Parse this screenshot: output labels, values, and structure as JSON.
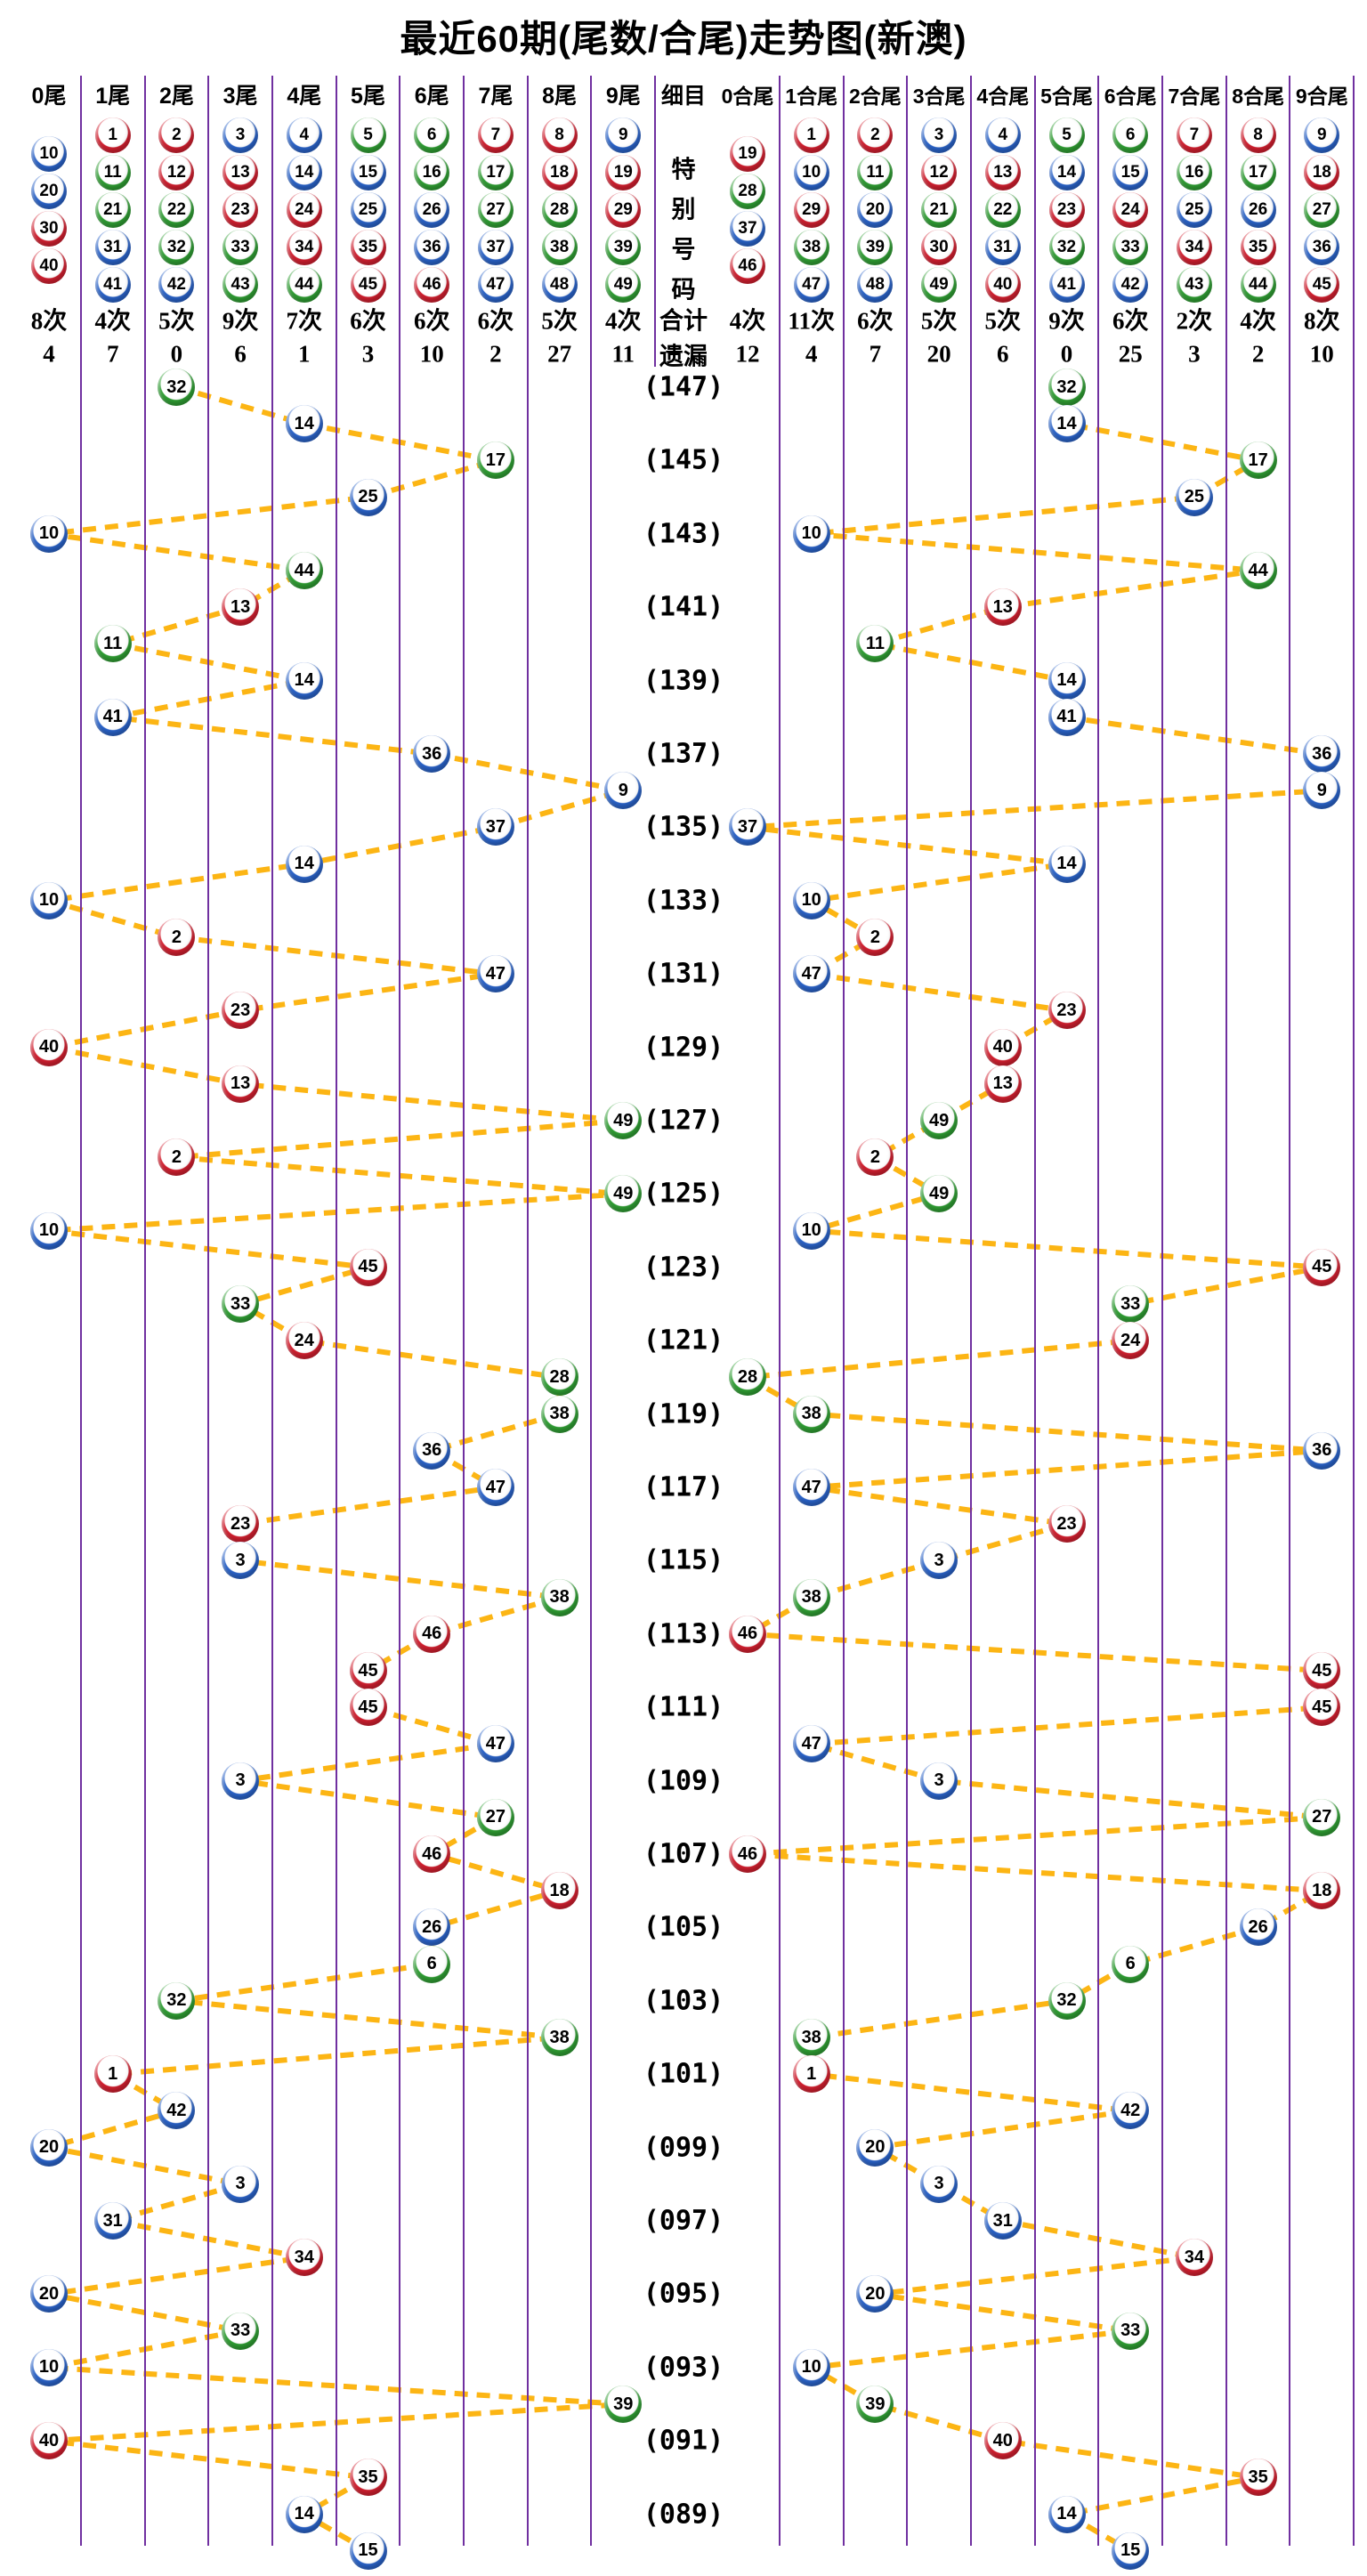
{
  "title": "最近60期(尾数/合尾)走势图(新澳)",
  "columns": {
    "left_headers": [
      "0尾",
      "1尾",
      "2尾",
      "3尾",
      "4尾",
      "5尾",
      "6尾",
      "7尾",
      "8尾",
      "9尾"
    ],
    "middle_header": "细目",
    "right_headers": [
      "0合尾",
      "1合尾",
      "2合尾",
      "3合尾",
      "4合尾",
      "5合尾",
      "6合尾",
      "7合尾",
      "8合尾",
      "9合尾"
    ]
  },
  "legend": {
    "special_label": "特别号码",
    "left_balls": [
      [
        10,
        20,
        30,
        40
      ],
      [
        1,
        11,
        21,
        31,
        41
      ],
      [
        2,
        12,
        22,
        32,
        42
      ],
      [
        3,
        13,
        23,
        33,
        43
      ],
      [
        4,
        14,
        24,
        34,
        44
      ],
      [
        5,
        15,
        25,
        35,
        45
      ],
      [
        6,
        16,
        26,
        36,
        46
      ],
      [
        7,
        17,
        27,
        37,
        47
      ],
      [
        8,
        18,
        28,
        38,
        48
      ],
      [
        9,
        19,
        29,
        39,
        49
      ]
    ],
    "right_balls": [
      [
        19,
        28,
        37,
        46
      ],
      [
        1,
        10,
        29,
        38,
        47
      ],
      [
        2,
        11,
        20,
        39,
        48
      ],
      [
        3,
        12,
        21,
        30,
        49
      ],
      [
        4,
        13,
        22,
        31,
        40
      ],
      [
        5,
        14,
        23,
        32,
        41
      ],
      [
        6,
        15,
        24,
        33,
        42
      ],
      [
        7,
        16,
        25,
        34,
        43
      ],
      [
        8,
        17,
        26,
        35,
        44
      ],
      [
        9,
        18,
        27,
        36,
        45
      ]
    ]
  },
  "stats": {
    "totals_label": "合计",
    "miss_label": "遗漏",
    "left_totals": [
      "8次",
      "4次",
      "5次",
      "9次",
      "7次",
      "6次",
      "6次",
      "6次",
      "5次",
      "4次"
    ],
    "left_miss": [
      "4",
      "7",
      "0",
      "6",
      "1",
      "3",
      "10",
      "2",
      "27",
      "11"
    ],
    "right_totals": [
      "4次",
      "11次",
      "6次",
      "5次",
      "5次",
      "9次",
      "6次",
      "2次",
      "4次",
      "8次"
    ],
    "right_miss": [
      "12",
      "4",
      "7",
      "20",
      "6",
      "0",
      "25",
      "3",
      "2",
      "10"
    ]
  },
  "chart_data": {
    "type": "scatter",
    "title": "最近60期(尾数/合尾)走势图(新澳)",
    "x_axis_left": [
      "0尾",
      "1尾",
      "2尾",
      "3尾",
      "4尾",
      "5尾",
      "6尾",
      "7尾",
      "8尾",
      "9尾"
    ],
    "x_axis_right": [
      "0合尾",
      "1合尾",
      "2合尾",
      "3合尾",
      "4合尾",
      "5合尾",
      "6合尾",
      "7合尾",
      "8合尾",
      "9合尾"
    ],
    "row_label_format": "(period)",
    "rows": [
      {
        "n": 32,
        "tail": 2,
        "sum_tail": 5,
        "label": "(147)"
      },
      {
        "n": 14,
        "tail": 4,
        "sum_tail": 5,
        "label": ""
      },
      {
        "n": 17,
        "tail": 7,
        "sum_tail": 8,
        "label": "(145)"
      },
      {
        "n": 25,
        "tail": 5,
        "sum_tail": 7,
        "label": ""
      },
      {
        "n": 10,
        "tail": 0,
        "sum_tail": 1,
        "label": "(143)"
      },
      {
        "n": 44,
        "tail": 4,
        "sum_tail": 8,
        "label": ""
      },
      {
        "n": 13,
        "tail": 3,
        "sum_tail": 4,
        "label": "(141)"
      },
      {
        "n": 11,
        "tail": 1,
        "sum_tail": 2,
        "label": ""
      },
      {
        "n": 14,
        "tail": 4,
        "sum_tail": 5,
        "label": "(139)"
      },
      {
        "n": 41,
        "tail": 1,
        "sum_tail": 5,
        "label": ""
      },
      {
        "n": 36,
        "tail": 6,
        "sum_tail": 9,
        "label": "(137)"
      },
      {
        "n": 9,
        "tail": 9,
        "sum_tail": 9,
        "label": ""
      },
      {
        "n": 37,
        "tail": 7,
        "sum_tail": 0,
        "label": "(135)"
      },
      {
        "n": 14,
        "tail": 4,
        "sum_tail": 5,
        "label": ""
      },
      {
        "n": 10,
        "tail": 0,
        "sum_tail": 1,
        "label": "(133)"
      },
      {
        "n": 2,
        "tail": 2,
        "sum_tail": 2,
        "label": ""
      },
      {
        "n": 47,
        "tail": 7,
        "sum_tail": 1,
        "label": "(131)"
      },
      {
        "n": 23,
        "tail": 3,
        "sum_tail": 5,
        "label": ""
      },
      {
        "n": 40,
        "tail": 0,
        "sum_tail": 4,
        "label": "(129)"
      },
      {
        "n": 13,
        "tail": 3,
        "sum_tail": 4,
        "label": ""
      },
      {
        "n": 49,
        "tail": 9,
        "sum_tail": 3,
        "label": "(127)"
      },
      {
        "n": 2,
        "tail": 2,
        "sum_tail": 2,
        "label": ""
      },
      {
        "n": 49,
        "tail": 9,
        "sum_tail": 3,
        "label": "(125)"
      },
      {
        "n": 10,
        "tail": 0,
        "sum_tail": 1,
        "label": ""
      },
      {
        "n": 45,
        "tail": 5,
        "sum_tail": 9,
        "label": "(123)"
      },
      {
        "n": 33,
        "tail": 3,
        "sum_tail": 6,
        "label": ""
      },
      {
        "n": 24,
        "tail": 4,
        "sum_tail": 6,
        "label": "(121)"
      },
      {
        "n": 28,
        "tail": 8,
        "sum_tail": 0,
        "label": ""
      },
      {
        "n": 38,
        "tail": 8,
        "sum_tail": 1,
        "label": "(119)"
      },
      {
        "n": 36,
        "tail": 6,
        "sum_tail": 9,
        "label": ""
      },
      {
        "n": 47,
        "tail": 7,
        "sum_tail": 1,
        "label": "(117)"
      },
      {
        "n": 23,
        "tail": 3,
        "sum_tail": 5,
        "label": ""
      },
      {
        "n": 3,
        "tail": 3,
        "sum_tail": 3,
        "label": "(115)"
      },
      {
        "n": 38,
        "tail": 8,
        "sum_tail": 1,
        "label": ""
      },
      {
        "n": 46,
        "tail": 6,
        "sum_tail": 0,
        "label": "(113)"
      },
      {
        "n": 45,
        "tail": 5,
        "sum_tail": 9,
        "label": ""
      },
      {
        "n": 45,
        "tail": 5,
        "sum_tail": 9,
        "label": "(111)"
      },
      {
        "n": 47,
        "tail": 7,
        "sum_tail": 1,
        "label": ""
      },
      {
        "n": 3,
        "tail": 3,
        "sum_tail": 3,
        "label": "(109)"
      },
      {
        "n": 27,
        "tail": 7,
        "sum_tail": 9,
        "label": ""
      },
      {
        "n": 46,
        "tail": 6,
        "sum_tail": 0,
        "label": "(107)"
      },
      {
        "n": 18,
        "tail": 8,
        "sum_tail": 9,
        "label": ""
      },
      {
        "n": 26,
        "tail": 6,
        "sum_tail": 8,
        "label": "(105)"
      },
      {
        "n": 6,
        "tail": 6,
        "sum_tail": 6,
        "label": ""
      },
      {
        "n": 32,
        "tail": 2,
        "sum_tail": 5,
        "label": "(103)"
      },
      {
        "n": 38,
        "tail": 8,
        "sum_tail": 1,
        "label": ""
      },
      {
        "n": 1,
        "tail": 1,
        "sum_tail": 1,
        "label": "(101)"
      },
      {
        "n": 42,
        "tail": 2,
        "sum_tail": 6,
        "label": ""
      },
      {
        "n": 20,
        "tail": 0,
        "sum_tail": 2,
        "label": "(099)"
      },
      {
        "n": 3,
        "tail": 3,
        "sum_tail": 3,
        "label": ""
      },
      {
        "n": 31,
        "tail": 1,
        "sum_tail": 4,
        "label": "(097)"
      },
      {
        "n": 34,
        "tail": 4,
        "sum_tail": 7,
        "label": ""
      },
      {
        "n": 20,
        "tail": 0,
        "sum_tail": 2,
        "label": "(095)"
      },
      {
        "n": 33,
        "tail": 3,
        "sum_tail": 6,
        "label": ""
      },
      {
        "n": 10,
        "tail": 0,
        "sum_tail": 1,
        "label": "(093)"
      },
      {
        "n": 39,
        "tail": 9,
        "sum_tail": 2,
        "label": ""
      },
      {
        "n": 40,
        "tail": 0,
        "sum_tail": 4,
        "label": "(091)"
      },
      {
        "n": 35,
        "tail": 5,
        "sum_tail": 8,
        "label": ""
      },
      {
        "n": 14,
        "tail": 4,
        "sum_tail": 5,
        "label": "(089)"
      },
      {
        "n": 15,
        "tail": 5,
        "sum_tail": 6,
        "label": ""
      }
    ]
  },
  "colors": {
    "red": "#d21f2f",
    "red_dark": "#8e0016",
    "blue": "#2a63c9",
    "blue_dark": "#123f8f",
    "green": "#2f9e33",
    "green_dark": "#166b1c",
    "grid_line": "#7030a0",
    "connector": "#fcb514",
    "text": "#000000",
    "background": "#ffffff",
    "red_numbers": [
      1,
      2,
      7,
      8,
      12,
      13,
      18,
      19,
      23,
      24,
      29,
      30,
      34,
      35,
      40,
      45,
      46
    ],
    "blue_numbers": [
      3,
      4,
      9,
      10,
      14,
      15,
      20,
      25,
      26,
      31,
      36,
      37,
      41,
      42,
      47,
      48
    ],
    "green_numbers": [
      5,
      6,
      11,
      16,
      17,
      21,
      22,
      27,
      28,
      32,
      33,
      38,
      39,
      43,
      44,
      49
    ]
  }
}
